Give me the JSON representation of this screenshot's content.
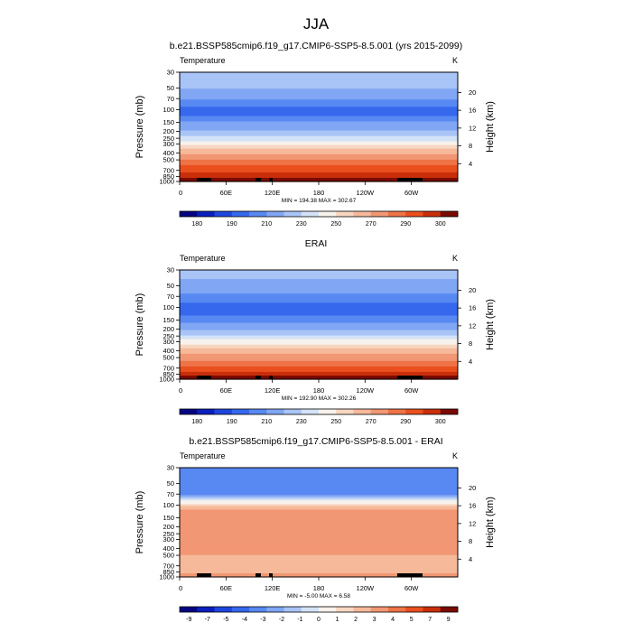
{
  "figure": {
    "title": "JJA"
  },
  "chart_data": [
    {
      "type": "heatmap",
      "title": "b.e21.BSSP585cmip6.f19_g17.CMIP6-SSP5-8.5.001 (yrs 2015-2099)",
      "variable": "Temperature",
      "units": "K",
      "ylabel": "Pressure (mb)",
      "ylabel_right": "Height (km)",
      "xlabel": "",
      "y_scale": "log",
      "y_reversed": true,
      "ylim": [
        1000,
        30
      ],
      "x_ticks": [
        "0",
        "60E",
        "120E",
        "180",
        "120W",
        "60W"
      ],
      "y_ticks": [
        "30",
        "50",
        "70",
        "100",
        "150",
        "200",
        "250",
        "300",
        "400",
        "500",
        "700",
        "850",
        "1000"
      ],
      "height_ticks": [
        "4",
        "8",
        "12",
        "16",
        "20"
      ],
      "min_max_label": "MIN = 194.38  MAX = 302.67",
      "colorbar": {
        "labels": [
          "180",
          "190",
          "210",
          "230",
          "250",
          "270",
          "290",
          "300"
        ],
        "colors": [
          "#050582",
          "#0a1fbd",
          "#1e45de",
          "#3668ee",
          "#5888f2",
          "#80a6f4",
          "#a9c4f6",
          "#d4e2f7",
          "#f8f2ec",
          "#f7d7c2",
          "#f6b99a",
          "#f29773",
          "#ee7347",
          "#ea4f1e",
          "#c92f0a",
          "#7a0a02"
        ]
      },
      "profile": [
        {
          "p": 30,
          "t": 230.0
        },
        {
          "p": 50,
          "t": 223.0
        },
        {
          "p": 70,
          "t": 215.0
        },
        {
          "p": 100,
          "t": 204.0
        },
        {
          "p": 120,
          "t": 205.0
        },
        {
          "p": 150,
          "t": 217.0
        },
        {
          "p": 200,
          "t": 224.0
        },
        {
          "p": 250,
          "t": 235.0
        },
        {
          "p": 300,
          "t": 245.0
        },
        {
          "p": 400,
          "t": 262.0
        },
        {
          "p": 500,
          "t": 272.0
        },
        {
          "p": 600,
          "t": 280.0
        },
        {
          "p": 700,
          "t": 286.0
        },
        {
          "p": 850,
          "t": 294.0
        },
        {
          "p": 1000,
          "t": 302.0
        }
      ]
    },
    {
      "type": "heatmap",
      "title": "ERAI",
      "variable": "Temperature",
      "units": "K",
      "ylabel": "Pressure (mb)",
      "ylabel_right": "Height (km)",
      "xlabel": "",
      "y_scale": "log",
      "y_reversed": true,
      "ylim": [
        1000,
        30
      ],
      "x_ticks": [
        "0",
        "60E",
        "120E",
        "180",
        "120W",
        "60W"
      ],
      "y_ticks": [
        "30",
        "50",
        "70",
        "100",
        "150",
        "200",
        "250",
        "300",
        "400",
        "500",
        "700",
        "850",
        "1000"
      ],
      "height_ticks": [
        "4",
        "8",
        "12",
        "16",
        "20"
      ],
      "min_max_label": "MIN = 192.90  MAX = 302.26",
      "colorbar": {
        "labels": [
          "180",
          "190",
          "210",
          "230",
          "250",
          "270",
          "290",
          "300"
        ],
        "colors": [
          "#050582",
          "#0a1fbd",
          "#1e45de",
          "#3668ee",
          "#5888f2",
          "#80a6f4",
          "#a9c4f6",
          "#d4e2f7",
          "#f8f2ec",
          "#f7d7c2",
          "#f6b99a",
          "#f29773",
          "#ee7347",
          "#ea4f1e",
          "#c92f0a",
          "#7a0a02"
        ]
      },
      "profile": [
        {
          "p": 30,
          "t": 226.0
        },
        {
          "p": 50,
          "t": 220.0
        },
        {
          "p": 70,
          "t": 213.0
        },
        {
          "p": 100,
          "t": 202.0
        },
        {
          "p": 120,
          "t": 203.0
        },
        {
          "p": 150,
          "t": 213.0
        },
        {
          "p": 200,
          "t": 220.0
        },
        {
          "p": 250,
          "t": 232.0
        },
        {
          "p": 300,
          "t": 242.0
        },
        {
          "p": 400,
          "t": 258.0
        },
        {
          "p": 500,
          "t": 268.0
        },
        {
          "p": 600,
          "t": 276.0
        },
        {
          "p": 700,
          "t": 283.0
        },
        {
          "p": 850,
          "t": 292.0
        },
        {
          "p": 1000,
          "t": 301.0
        }
      ]
    },
    {
      "type": "heatmap",
      "title": "b.e21.BSSP585cmip6.f19_g17.CMIP6-SSP5-8.5.001 - ERAI",
      "variable": "Temperature",
      "units": "K",
      "ylabel": "Pressure (mb)",
      "ylabel_right": "Height (km)",
      "xlabel": "",
      "y_scale": "log",
      "y_reversed": true,
      "ylim": [
        1000,
        30
      ],
      "x_ticks": [
        "0",
        "60E",
        "120E",
        "180",
        "120W",
        "60W"
      ],
      "y_ticks": [
        "30",
        "50",
        "70",
        "100",
        "150",
        "200",
        "250",
        "300",
        "400",
        "500",
        "700",
        "850",
        "1000"
      ],
      "height_ticks": [
        "4",
        "8",
        "12",
        "16",
        "20"
      ],
      "min_max_label": "MIN = -5.00  MAX =  6.58",
      "colorbar": {
        "labels": [
          "-9",
          "-7",
          "-5",
          "-4",
          "-3",
          "-2",
          "-1",
          "0",
          "1",
          "2",
          "3",
          "4",
          "5",
          "7",
          "9"
        ],
        "colors": [
          "#050582",
          "#0a1fbd",
          "#1e45de",
          "#3668ee",
          "#5888f2",
          "#80a6f4",
          "#a9c4f6",
          "#d4e2f7",
          "#f8f2ec",
          "#f7d7c2",
          "#f6b99a",
          "#f29773",
          "#ee7347",
          "#ea4f1e",
          "#c92f0a",
          "#7a0a02"
        ]
      },
      "profile": [
        {
          "p": 30,
          "t": -4.2
        },
        {
          "p": 50,
          "t": -4.0
        },
        {
          "p": 70,
          "t": -3.5
        },
        {
          "p": 90,
          "t": 0.5
        },
        {
          "p": 100,
          "t": 2.0
        },
        {
          "p": 120,
          "t": 3.5
        },
        {
          "p": 150,
          "t": 3.5
        },
        {
          "p": 200,
          "t": 3.6
        },
        {
          "p": 300,
          "t": 3.6
        },
        {
          "p": 400,
          "t": 3.6
        },
        {
          "p": 500,
          "t": 3.5
        },
        {
          "p": 550,
          "t": 2.5
        },
        {
          "p": 620,
          "t": 3.4
        },
        {
          "p": 700,
          "t": 3.0
        },
        {
          "p": 850,
          "t": 3.2
        },
        {
          "p": 1000,
          "t": 4.5
        }
      ]
    }
  ]
}
